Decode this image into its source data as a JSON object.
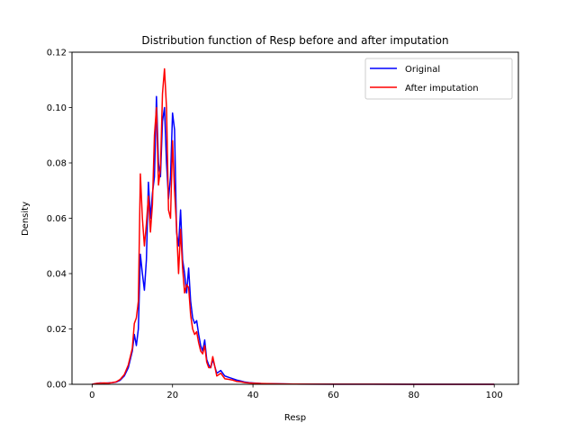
{
  "chart_data": {
    "type": "line",
    "title": "Distribution function of Resp before and after imputation",
    "xlabel": "Resp",
    "ylabel": "Density",
    "xlim": [
      -5,
      106
    ],
    "ylim": [
      0,
      0.12
    ],
    "x_ticks": [
      "0",
      "20",
      "40",
      "60",
      "80",
      "100"
    ],
    "y_ticks": [
      "0.00",
      "0.02",
      "0.04",
      "0.06",
      "0.08",
      "0.10",
      "0.12"
    ],
    "x_tick_values": [
      0,
      20,
      40,
      60,
      80,
      100
    ],
    "y_tick_values": [
      0,
      0.02,
      0.04,
      0.06,
      0.08,
      0.1,
      0.12
    ],
    "grid": false,
    "legend_position": "top-right",
    "series": [
      {
        "name": "Original",
        "color": "#0000ff",
        "points": [
          [
            0,
            0
          ],
          [
            1,
            0.0003
          ],
          [
            2,
            0.0005
          ],
          [
            3,
            0.0004
          ],
          [
            4,
            0.0005
          ],
          [
            5,
            0.0006
          ],
          [
            6,
            0.0008
          ],
          [
            7,
            0.0015
          ],
          [
            8,
            0.003
          ],
          [
            9,
            0.006
          ],
          [
            10,
            0.012
          ],
          [
            10.5,
            0.018
          ],
          [
            11,
            0.014
          ],
          [
            11.5,
            0.02
          ],
          [
            12,
            0.047
          ],
          [
            12.5,
            0.04
          ],
          [
            13,
            0.034
          ],
          [
            13.5,
            0.045
          ],
          [
            14,
            0.073
          ],
          [
            14.5,
            0.06
          ],
          [
            15,
            0.069
          ],
          [
            15.5,
            0.075
          ],
          [
            16,
            0.104
          ],
          [
            16.5,
            0.08
          ],
          [
            17,
            0.075
          ],
          [
            17.5,
            0.095
          ],
          [
            18,
            0.1
          ],
          [
            18.5,
            0.08
          ],
          [
            19,
            0.067
          ],
          [
            19.5,
            0.075
          ],
          [
            20,
            0.098
          ],
          [
            20.5,
            0.092
          ],
          [
            21,
            0.055
          ],
          [
            21.5,
            0.05
          ],
          [
            22,
            0.063
          ],
          [
            22.5,
            0.045
          ],
          [
            23,
            0.04
          ],
          [
            23.5,
            0.033
          ],
          [
            24,
            0.042
          ],
          [
            24.5,
            0.03
          ],
          [
            25,
            0.024
          ],
          [
            25.5,
            0.022
          ],
          [
            26,
            0.023
          ],
          [
            26.5,
            0.018
          ],
          [
            27,
            0.014
          ],
          [
            27.5,
            0.012
          ],
          [
            28,
            0.016
          ],
          [
            28.5,
            0.009
          ],
          [
            29,
            0.007
          ],
          [
            29.5,
            0.006
          ],
          [
            30,
            0.009
          ],
          [
            31,
            0.004
          ],
          [
            32,
            0.005
          ],
          [
            33,
            0.003
          ],
          [
            34,
            0.0025
          ],
          [
            35,
            0.002
          ],
          [
            36,
            0.0015
          ],
          [
            37,
            0.0012
          ],
          [
            38,
            0.0008
          ],
          [
            39,
            0.0006
          ],
          [
            40,
            0.0005
          ],
          [
            42,
            0.0003
          ],
          [
            45,
            0.0002
          ],
          [
            50,
            0.0001
          ],
          [
            60,
            5e-05
          ],
          [
            70,
            3e-05
          ],
          [
            80,
            2e-05
          ],
          [
            90,
            1e-05
          ],
          [
            100,
            0
          ]
        ]
      },
      {
        "name": "After imputation",
        "color": "#ff0000",
        "points": [
          [
            0,
            0
          ],
          [
            1,
            0.0003
          ],
          [
            2,
            0.0004
          ],
          [
            3,
            0.0005
          ],
          [
            4,
            0.0004
          ],
          [
            5,
            0.0006
          ],
          [
            6,
            0.0009
          ],
          [
            7,
            0.0018
          ],
          [
            8,
            0.0035
          ],
          [
            9,
            0.007
          ],
          [
            10,
            0.013
          ],
          [
            10.5,
            0.022
          ],
          [
            11,
            0.024
          ],
          [
            11.5,
            0.03
          ],
          [
            12,
            0.076
          ],
          [
            12.5,
            0.06
          ],
          [
            13,
            0.05
          ],
          [
            13.5,
            0.058
          ],
          [
            14,
            0.068
          ],
          [
            14.5,
            0.055
          ],
          [
            15,
            0.065
          ],
          [
            15.5,
            0.09
          ],
          [
            16,
            0.1
          ],
          [
            16.5,
            0.072
          ],
          [
            17,
            0.078
          ],
          [
            17.5,
            0.105
          ],
          [
            18,
            0.114
          ],
          [
            18.5,
            0.1
          ],
          [
            19,
            0.063
          ],
          [
            19.5,
            0.06
          ],
          [
            20,
            0.088
          ],
          [
            20.5,
            0.07
          ],
          [
            21,
            0.057
          ],
          [
            21.5,
            0.04
          ],
          [
            22,
            0.056
          ],
          [
            22.5,
            0.042
          ],
          [
            23,
            0.033
          ],
          [
            23.5,
            0.036
          ],
          [
            24,
            0.035
          ],
          [
            24.5,
            0.025
          ],
          [
            25,
            0.02
          ],
          [
            25.5,
            0.018
          ],
          [
            26,
            0.019
          ],
          [
            26.5,
            0.015
          ],
          [
            27,
            0.012
          ],
          [
            27.5,
            0.011
          ],
          [
            28,
            0.014
          ],
          [
            28.5,
            0.008
          ],
          [
            29,
            0.006
          ],
          [
            29.5,
            0.006
          ],
          [
            30,
            0.01
          ],
          [
            31,
            0.003
          ],
          [
            32,
            0.004
          ],
          [
            33,
            0.002
          ],
          [
            34,
            0.0018
          ],
          [
            35,
            0.0015
          ],
          [
            36,
            0.001
          ],
          [
            37,
            0.0009
          ],
          [
            38,
            0.0006
          ],
          [
            39,
            0.0005
          ],
          [
            40,
            0.0004
          ],
          [
            42,
            0.0003
          ],
          [
            45,
            0.0002
          ],
          [
            50,
            0.0001
          ],
          [
            60,
            5e-05
          ],
          [
            70,
            3e-05
          ],
          [
            80,
            2e-05
          ],
          [
            90,
            1e-05
          ],
          [
            100,
            0
          ]
        ]
      }
    ]
  }
}
